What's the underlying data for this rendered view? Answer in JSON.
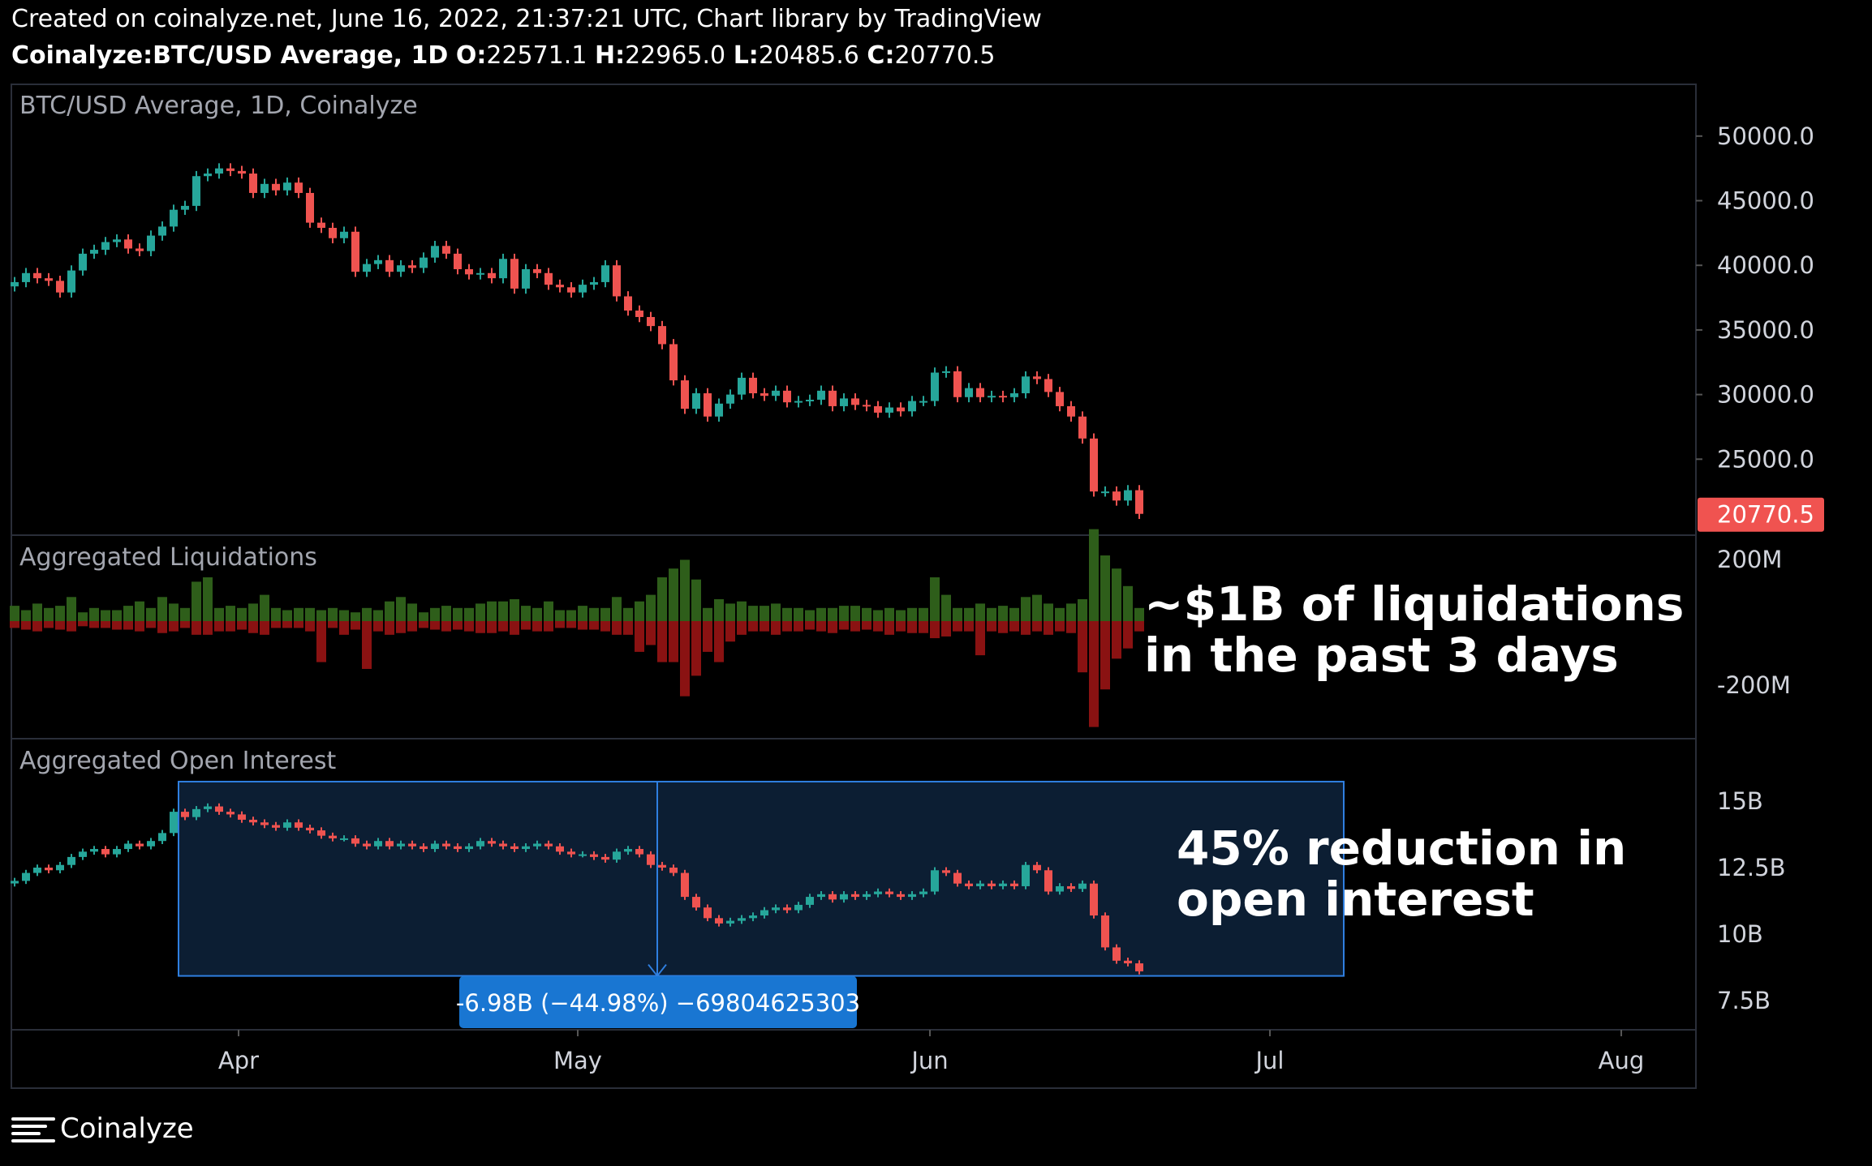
{
  "header": {
    "created_line": "Created on coinalyze.net, June 16, 2022, 21:37:21 UTC, Chart library by TradingView",
    "symbol": "Coinalyze:BTC/USD Average, 1D",
    "o_label": "O:",
    "o_value": "22571.1",
    "h_label": "H:",
    "h_value": "22965.0",
    "l_label": "L:",
    "l_value": "20485.6",
    "c_label": "C:",
    "c_value": "20770.5"
  },
  "brand": {
    "name": "Coinalyze",
    "icon": "menu-lines-icon"
  },
  "colors": {
    "up": "#26a69a",
    "down": "#ef5350",
    "liq_long": "#2e5e1a",
    "liq_short": "#8a1212",
    "price_label_bg": "#f05350",
    "measure_bg": "#1976d2",
    "measure_fill": "#0c1e33",
    "measure_line": "#2f7fe0",
    "pane_border": "#2a2e39"
  },
  "annotations": {
    "liquidations": [
      "~$1B of liquidations",
      "in the past 3 days"
    ],
    "open_interest": [
      "45% reduction in",
      "open interest"
    ]
  },
  "measure": {
    "label": "-6.98B (−44.98%) −69804625303",
    "start_day": 15,
    "end_day": 112,
    "from_value": 15.55,
    "to_value": 8.55
  },
  "chart_data": [
    {
      "type": "candlestick",
      "title": "BTC/USD Average, 1D, Coinalyze",
      "x_start": "2022-03-08",
      "x_ticks": [
        "Apr",
        "May",
        "Jun",
        "Jul",
        "Aug"
      ],
      "y_ticks": [
        "50000.0",
        "45000.0",
        "40000.0",
        "35000.0",
        "30000.0",
        "25000.0"
      ],
      "ylim": [
        20000,
        53000
      ],
      "last_price": "20770.5",
      "close": [
        38700,
        39400,
        39000,
        38800,
        37900,
        39600,
        40900,
        41200,
        41800,
        42000,
        41300,
        41100,
        42300,
        43000,
        44300,
        44600,
        46900,
        47100,
        47500,
        47300,
        47100,
        45600,
        46300,
        45800,
        46400,
        45600,
        43300,
        42900,
        42100,
        42600,
        39500,
        40100,
        40400,
        39500,
        40000,
        39800,
        40600,
        41500,
        40900,
        39700,
        39300,
        39400,
        39000,
        40500,
        38200,
        39700,
        39400,
        38500,
        38300,
        37900,
        38500,
        38700,
        40000,
        37600,
        36500,
        36000,
        35300,
        33900,
        31100,
        28900,
        30100,
        28300,
        29300,
        30000,
        31300,
        30100,
        29900,
        30300,
        29400,
        29500,
        29600,
        30300,
        29100,
        29700,
        29200,
        29100,
        28600,
        29000,
        28700,
        29500,
        29500,
        31700,
        31800,
        29800,
        30500,
        29800,
        29900,
        29800,
        30100,
        31400,
        31200,
        30200,
        29100,
        28300,
        26600,
        22500,
        22500,
        21800,
        22600,
        20770
      ],
      "ohlc_note": ""
    },
    {
      "type": "bar",
      "title": "Aggregated Liquidations",
      "y_ticks": [
        "200M",
        "-200M"
      ],
      "ylim": [
        -310,
        210
      ],
      "long": [
        35,
        25,
        40,
        30,
        35,
        55,
        20,
        30,
        25,
        25,
        35,
        45,
        30,
        55,
        40,
        30,
        90,
        100,
        30,
        35,
        30,
        40,
        60,
        30,
        25,
        30,
        30,
        25,
        30,
        25,
        20,
        30,
        25,
        45,
        55,
        40,
        20,
        30,
        35,
        30,
        30,
        40,
        45,
        45,
        50,
        35,
        30,
        45,
        25,
        25,
        35,
        30,
        30,
        55,
        30,
        45,
        60,
        100,
        120,
        140,
        95,
        30,
        50,
        40,
        45,
        35,
        35,
        40,
        30,
        30,
        25,
        30,
        30,
        35,
        35,
        30,
        25,
        30,
        25,
        30,
        30,
        100,
        60,
        30,
        30,
        40,
        30,
        35,
        30,
        55,
        60,
        40,
        30,
        40,
        50,
        210,
        150,
        120,
        80,
        30
      ],
      "short": [
        20,
        25,
        30,
        20,
        25,
        30,
        15,
        20,
        20,
        25,
        25,
        30,
        20,
        35,
        30,
        20,
        40,
        40,
        30,
        30,
        25,
        35,
        40,
        20,
        20,
        20,
        30,
        120,
        20,
        40,
        25,
        140,
        30,
        40,
        35,
        30,
        20,
        25,
        30,
        25,
        30,
        35,
        35,
        30,
        40,
        25,
        30,
        30,
        20,
        20,
        25,
        25,
        30,
        40,
        40,
        90,
        70,
        120,
        120,
        220,
        160,
        90,
        120,
        60,
        40,
        30,
        30,
        40,
        30,
        30,
        25,
        30,
        35,
        25,
        30,
        25,
        30,
        40,
        30,
        35,
        35,
        50,
        45,
        30,
        30,
        100,
        30,
        35,
        30,
        40,
        30,
        40,
        30,
        35,
        150,
        310,
        200,
        110,
        80,
        30
      ]
    },
    {
      "type": "candlestick",
      "title": "Aggregated Open Interest",
      "y_ticks": [
        "15B",
        "12.5B",
        "10B",
        "7.5B"
      ],
      "ylim": [
        7.0,
        16.6
      ],
      "close": [
        12.0,
        12.3,
        12.5,
        12.4,
        12.6,
        12.9,
        13.1,
        13.2,
        13.0,
        13.2,
        13.4,
        13.3,
        13.5,
        13.8,
        14.6,
        14.4,
        14.7,
        14.8,
        14.6,
        14.5,
        14.3,
        14.2,
        14.1,
        14.0,
        14.2,
        14.0,
        13.9,
        13.7,
        13.6,
        13.6,
        13.4,
        13.3,
        13.5,
        13.3,
        13.4,
        13.3,
        13.2,
        13.4,
        13.3,
        13.2,
        13.3,
        13.5,
        13.4,
        13.3,
        13.2,
        13.3,
        13.4,
        13.3,
        13.1,
        13.0,
        13.0,
        12.9,
        12.8,
        13.1,
        13.2,
        13.0,
        12.6,
        12.5,
        12.3,
        11.4,
        11.0,
        10.6,
        10.4,
        10.5,
        10.6,
        10.7,
        10.9,
        11.0,
        10.9,
        11.1,
        11.4,
        11.5,
        11.3,
        11.5,
        11.4,
        11.5,
        11.6,
        11.5,
        11.4,
        11.5,
        11.6,
        12.4,
        12.3,
        11.9,
        11.8,
        11.9,
        11.8,
        11.9,
        11.8,
        12.6,
        12.4,
        11.6,
        11.8,
        11.7,
        11.9,
        10.7,
        9.5,
        9.0,
        8.9,
        8.6
      ]
    }
  ]
}
